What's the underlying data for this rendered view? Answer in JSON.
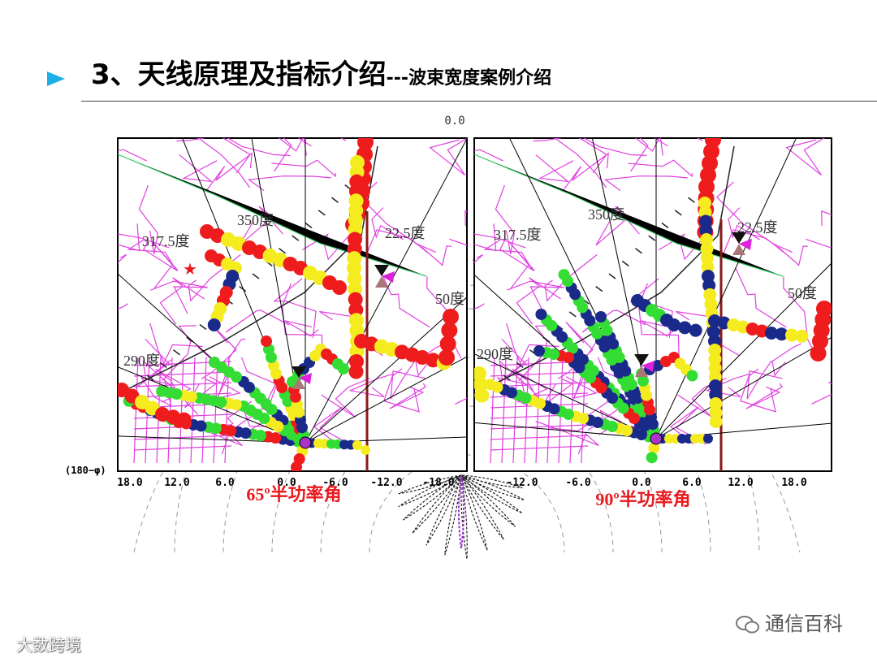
{
  "slide": {
    "title_main": "3、天线原理及指标介绍",
    "title_sub": "---波束宽度案例介绍"
  },
  "figure": {
    "top_angle": "0.0",
    "axis_left_label": "(180−φ)",
    "left_panel": {
      "caption": "65º半功率角",
      "angles": [
        "350度",
        "317.5度",
        "22.5度",
        "50度",
        "290度"
      ],
      "ticks": [
        "18.0",
        "12.0",
        "6.0",
        "0.0",
        "-6.0",
        "-12.0",
        "-18.0"
      ]
    },
    "right_panel": {
      "caption": "90º半功率角",
      "angles": [
        "350度",
        "317.5度",
        "22.5度",
        "50度",
        "290度"
      ],
      "ticks": [
        "-12.0",
        "-6.0",
        "0.0",
        "6.0",
        "12.0",
        "18.0"
      ]
    }
  },
  "footer": {
    "left_text": "大数跨境",
    "right_text": "通信百科"
  },
  "colors": {
    "bullet": "#1eaee8",
    "caption": "#e8191e",
    "road": "#e040e0",
    "drive_red": "#ee1c1c",
    "drive_yellow": "#f5ec20",
    "drive_green": "#33dd33",
    "drive_navy": "#1a2a8a"
  }
}
